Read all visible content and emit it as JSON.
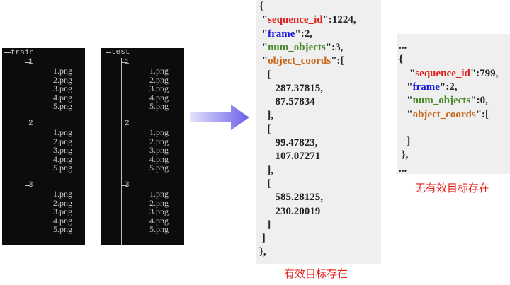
{
  "tree_train": {
    "root": "train",
    "folders": [
      {
        "name": "1",
        "files": [
          "1.png",
          "2.png",
          "3.png",
          "4.png",
          "5.png"
        ]
      },
      {
        "name": "2",
        "files": [
          "1.png",
          "2.png",
          "3.png",
          "4.png",
          "5.png"
        ]
      },
      {
        "name": "3",
        "files": [
          "1.png",
          "2.png",
          "3.png",
          "4.png",
          "5.png"
        ]
      }
    ]
  },
  "tree_test": {
    "root": "test",
    "folders": [
      {
        "name": "1",
        "files": [
          "1.png",
          "2.png",
          "3.png",
          "4.png",
          "5.png"
        ]
      },
      {
        "name": "2",
        "files": [
          "1.png",
          "2.png",
          "3.png",
          "4.png",
          "5.png"
        ]
      },
      {
        "name": "3",
        "files": [
          "1.png",
          "2.png",
          "3.png",
          "4.png",
          "5.png"
        ]
      }
    ]
  },
  "arrow_colors": {
    "start": "#e4e4fb",
    "end": "#6a5ee8"
  },
  "json_valid": {
    "lines": [
      [
        {
          "t": "{"
        }
      ],
      [
        {
          "t": " \""
        },
        {
          "t": "sequence_id",
          "c": "red"
        },
        {
          "t": "\":1224,"
        }
      ],
      [
        {
          "t": " \""
        },
        {
          "t": "frame",
          "c": "blue"
        },
        {
          "t": "\":2,"
        }
      ],
      [
        {
          "t": " \""
        },
        {
          "t": "num_objects",
          "c": "green"
        },
        {
          "t": "\":3,"
        }
      ],
      [
        {
          "t": " \""
        },
        {
          "t": "object_coords",
          "c": "orange"
        },
        {
          "t": "\":["
        }
      ],
      [
        {
          "t": "   ["
        }
      ],
      [
        {
          "t": "      287.37815,"
        }
      ],
      [
        {
          "t": "      87.57834"
        }
      ],
      [
        {
          "t": "   ],"
        }
      ],
      [
        {
          "t": "   ["
        }
      ],
      [
        {
          "t": "      99.47823,"
        }
      ],
      [
        {
          "t": "      107.07271"
        }
      ],
      [
        {
          "t": "   ],"
        }
      ],
      [
        {
          "t": "   ["
        }
      ],
      [
        {
          "t": "      585.28125,"
        }
      ],
      [
        {
          "t": "      230.20019"
        }
      ],
      [
        {
          "t": "   ]"
        }
      ],
      [
        {
          "t": " ]"
        }
      ],
      [
        {
          "t": "},"
        }
      ]
    ],
    "caption": "有效目标存在"
  },
  "json_empty": {
    "lines": [
      [
        {
          "t": "..."
        }
      ],
      [
        {
          "t": "{"
        }
      ],
      [
        {
          "t": "    \""
        },
        {
          "t": "sequence_id",
          "c": "red"
        },
        {
          "t": "\":799,"
        }
      ],
      [
        {
          "t": "   \""
        },
        {
          "t": "frame",
          "c": "blue"
        },
        {
          "t": "\":2,"
        }
      ],
      [
        {
          "t": "   \""
        },
        {
          "t": "num_objects",
          "c": "green"
        },
        {
          "t": "\":0,"
        }
      ],
      [
        {
          "t": "   \""
        },
        {
          "t": "object_coords",
          "c": "orange"
        },
        {
          "t": "\":["
        }
      ],
      [
        {
          "t": ""
        }
      ],
      [
        {
          "t": "   ]"
        }
      ],
      [
        {
          "t": " },"
        }
      ],
      [
        {
          "t": "..."
        }
      ]
    ],
    "caption": "无有效目标存在"
  }
}
